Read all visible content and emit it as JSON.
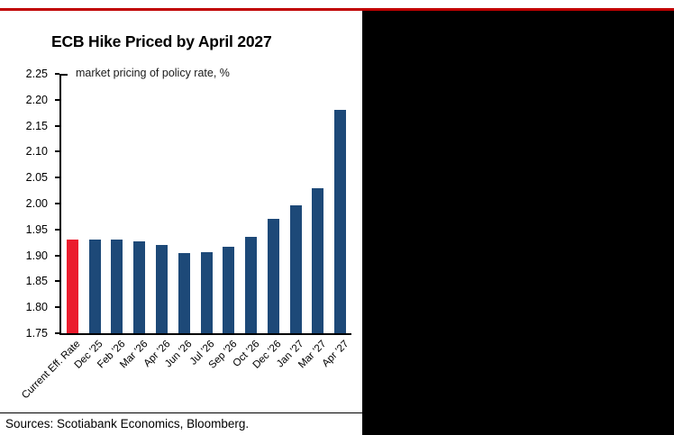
{
  "chart_data": {
    "type": "bar",
    "title": "ECB Hike Priced by April 2027",
    "subtitle": "market pricing of policy rate, %",
    "categories": [
      "Current Eff. Rate",
      "Dec '25",
      "Feb '26",
      "Mar '26",
      "Apr '26",
      "Jun '26",
      "Jul '26",
      "Sep '26",
      "Oct '26",
      "Dec '26",
      "Jan '27",
      "Mar '27",
      "Apr '27"
    ],
    "values": [
      1.93,
      1.93,
      1.93,
      1.927,
      1.921,
      1.905,
      1.907,
      1.916,
      1.936,
      1.971,
      1.996,
      2.029,
      2.181
    ],
    "highlighted_category": "Current Eff. Rate",
    "ylim": [
      1.75,
      2.25
    ],
    "ytick_step": 0.05,
    "yticks": [
      "2.25",
      "2.20",
      "2.15",
      "2.10",
      "2.05",
      "2.00",
      "1.95",
      "1.90",
      "1.85",
      "1.80",
      "1.75"
    ],
    "grid": false,
    "legend": false
  },
  "footer": {
    "source": "Sources: Scotiabank Economics, Bloomberg."
  },
  "colors": {
    "accent_red_rule": "#C00000",
    "bar_navy": "#1D4978",
    "bar_red": "#EB1C2D",
    "side_panel_black": "#000000"
  }
}
